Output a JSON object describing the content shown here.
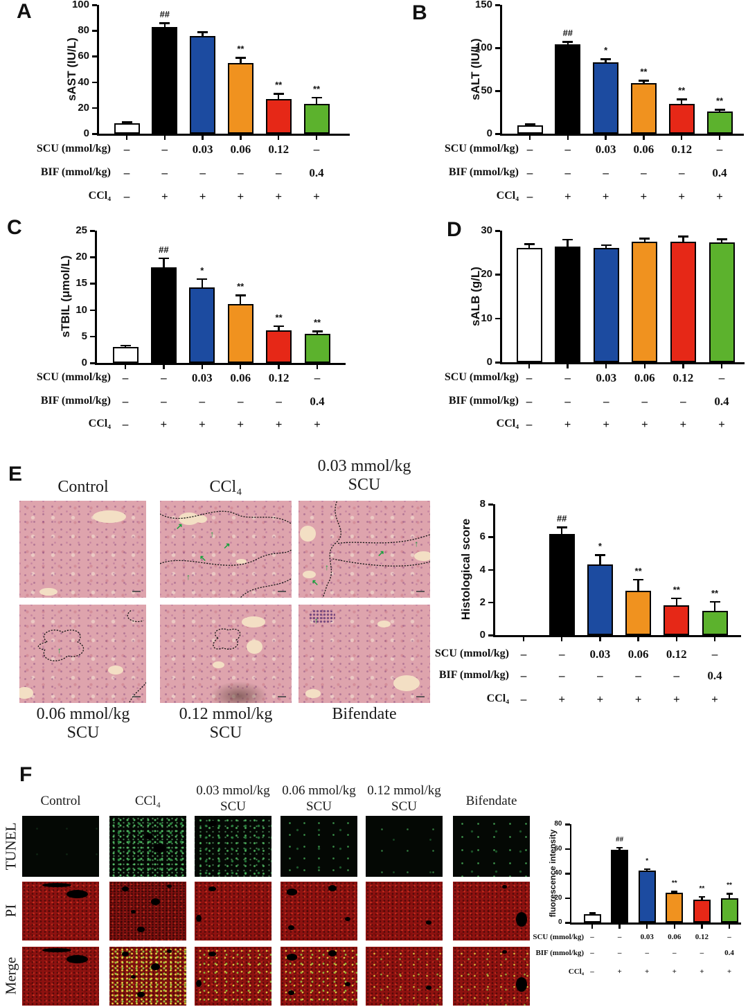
{
  "dose_table": {
    "rows": [
      {
        "label": "SCU (mmol/kg)",
        "values": [
          "–",
          "–",
          "0.03",
          "0.06",
          "0.12",
          "–"
        ]
      },
      {
        "label": "BIF (mmol/kg)",
        "values": [
          "–",
          "–",
          "–",
          "–",
          "–",
          "0.4"
        ]
      },
      {
        "label": "CCl₄",
        "values": [
          "–",
          "+",
          "+",
          "+",
          "+",
          "+"
        ]
      }
    ]
  },
  "groups": [
    "Control",
    "CCl₄",
    "0.03 mmol/kg SCU",
    "0.06 mmol/kg SCU",
    "0.12 mmol/kg SCU",
    "Bifendate"
  ],
  "chart_data": [
    {
      "panel": "A",
      "type": "bar",
      "ylabel": "sAST (IU/L)",
      "ylim": [
        0,
        100
      ],
      "yticks": [
        0,
        20,
        40,
        60,
        80,
        100
      ],
      "values": [
        8,
        83,
        76,
        55,
        27,
        23
      ],
      "errors": [
        1,
        3,
        3,
        4,
        4,
        5
      ],
      "sig": [
        "",
        "##",
        "",
        "**",
        "**",
        "**"
      ]
    },
    {
      "panel": "B",
      "type": "bar",
      "ylabel": "sALT (IU/L)",
      "ylim": [
        0,
        150
      ],
      "yticks": [
        0,
        50,
        100,
        150
      ],
      "values": [
        10,
        104,
        83,
        59,
        35,
        26
      ],
      "errors": [
        1,
        3,
        4,
        3,
        5,
        2
      ],
      "sig": [
        "",
        "##",
        "*",
        "**",
        "**",
        "**"
      ]
    },
    {
      "panel": "C",
      "type": "bar",
      "ylabel": "sTBIL (μmol/L)",
      "ylim": [
        0,
        25
      ],
      "yticks": [
        0,
        5,
        10,
        15,
        20,
        25
      ],
      "values": [
        3,
        18.1,
        14.3,
        11.1,
        6.2,
        5.5
      ],
      "errors": [
        0.3,
        1.7,
        1.6,
        1.7,
        0.8,
        0.5
      ],
      "sig": [
        "",
        "##",
        "*",
        "**",
        "**",
        "**"
      ]
    },
    {
      "panel": "D",
      "type": "bar",
      "ylabel": "sALB (g/L)",
      "ylim": [
        0,
        30
      ],
      "yticks": [
        0,
        10,
        20,
        30
      ],
      "values": [
        26,
        26.4,
        26,
        27.5,
        27.5,
        27.3
      ],
      "errors": [
        1,
        1.6,
        0.7,
        0.7,
        1.2,
        0.8
      ],
      "sig": [
        "",
        "",
        "",
        "",
        "",
        ""
      ]
    },
    {
      "panel": "E",
      "type": "bar",
      "ylabel": "Histological score",
      "ylim": [
        0,
        8
      ],
      "yticks": [
        0,
        2,
        4,
        6,
        8
      ],
      "values": [
        0,
        6.2,
        4.3,
        2.7,
        1.8,
        1.5
      ],
      "errors": [
        0,
        0.4,
        0.6,
        0.7,
        0.45,
        0.55
      ],
      "sig": [
        "",
        "##",
        "*",
        "**",
        "**",
        "**"
      ]
    },
    {
      "panel": "F",
      "type": "bar",
      "ylabel": "fluorescence intensity",
      "ylim": [
        0,
        80
      ],
      "yticks": [
        0,
        20,
        40,
        60,
        80
      ],
      "values": [
        7,
        59,
        42,
        24,
        18.5,
        20
      ],
      "errors": [
        0.8,
        2,
        1.5,
        1.2,
        2.5,
        3.5
      ],
      "sig": [
        "",
        "##",
        "*",
        "**",
        "**",
        "**"
      ]
    }
  ],
  "panel_e": {
    "letter": "E",
    "top_titles": [
      [
        "Control"
      ],
      [
        "CCl₄"
      ],
      [
        "0.03 mmol/kg",
        "SCU"
      ]
    ],
    "bottom_titles": [
      [
        "0.06 mmol/kg",
        "SCU"
      ],
      [
        "0.12 mmol/kg",
        "SCU"
      ],
      [
        "Bifendate"
      ]
    ]
  },
  "panel_f": {
    "letter": "F",
    "column_titles": [
      [
        "Control"
      ],
      [
        "CCl₄"
      ],
      [
        "0.03 mmol/kg",
        "SCU"
      ],
      [
        "0.06 mmol/kg",
        "SCU"
      ],
      [
        "0.12 mmol/kg",
        "SCU"
      ],
      [
        "Bifendate"
      ]
    ],
    "row_labels": [
      "TUNEL",
      "PI",
      "Merge"
    ]
  },
  "colors": {
    "bar_fills": [
      "#ffffff",
      "#000000",
      "#1c4ba0",
      "#f0921f",
      "#e62817",
      "#5cb22d"
    ]
  }
}
